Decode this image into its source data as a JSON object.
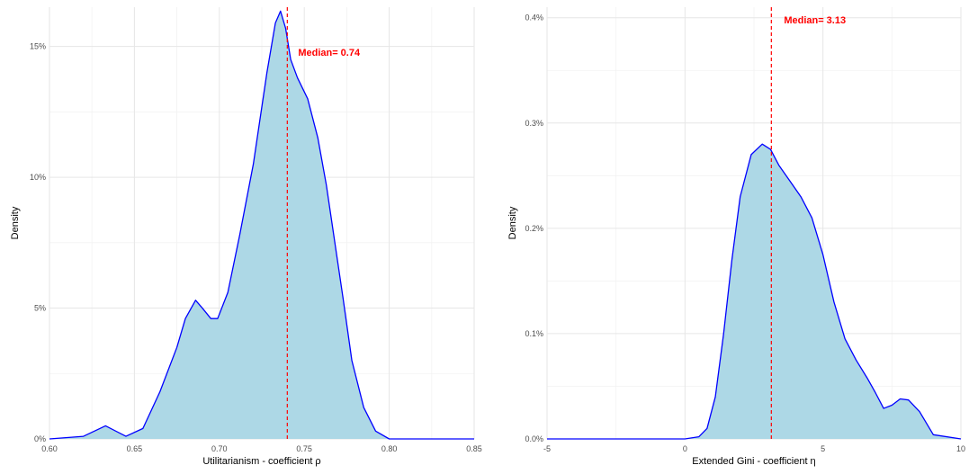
{
  "colors": {
    "fill": "#add8e6",
    "line": "#0000ff",
    "median": "#ff0000"
  },
  "chart_data": [
    {
      "type": "area",
      "title": "",
      "xlabel": "Utilitarianism - coefficient ρ",
      "ylabel": "Density",
      "xlim": [
        0.6,
        0.85
      ],
      "ylim": [
        0,
        0.165
      ],
      "x_ticks": [
        0.6,
        0.65,
        0.7,
        0.75,
        0.8,
        0.85
      ],
      "x_tick_labels": [
        "0.60",
        "0.65",
        "0.70",
        "0.75",
        "0.80",
        "0.85"
      ],
      "y_ticks": [
        0,
        0.05,
        0.1,
        0.15
      ],
      "y_tick_labels": [
        "0%",
        "5%",
        "10%",
        "15%"
      ],
      "grid": true,
      "median": {
        "x": 0.74,
        "label": "Median= 0.74"
      },
      "series": [
        {
          "x": [
            0.6,
            0.62,
            0.633,
            0.645,
            0.655,
            0.665,
            0.675,
            0.68,
            0.686,
            0.69,
            0.695,
            0.699,
            0.705,
            0.712,
            0.72,
            0.728,
            0.733,
            0.736,
            0.739,
            0.742,
            0.746,
            0.752,
            0.758,
            0.763,
            0.768,
            0.773,
            0.778,
            0.785,
            0.792,
            0.8,
            0.81,
            0.83,
            0.85
          ],
          "y": [
            0.0,
            0.001,
            0.005,
            0.001,
            0.004,
            0.018,
            0.035,
            0.046,
            0.053,
            0.05,
            0.046,
            0.046,
            0.056,
            0.078,
            0.105,
            0.14,
            0.159,
            0.1635,
            0.157,
            0.145,
            0.138,
            0.13,
            0.115,
            0.097,
            0.075,
            0.053,
            0.03,
            0.012,
            0.003,
            0.0,
            0.0,
            0.0,
            0.0
          ]
        }
      ]
    },
    {
      "type": "area",
      "title": "",
      "xlabel": "Extended Gini - coefficient η",
      "ylabel": "Density",
      "xlim": [
        -5,
        10
      ],
      "ylim": [
        0,
        0.0041
      ],
      "x_ticks": [
        -5,
        0,
        5,
        10
      ],
      "x_tick_labels": [
        "-5",
        "0",
        "5",
        "10"
      ],
      "y_ticks": [
        0,
        0.001,
        0.002,
        0.003,
        0.004
      ],
      "y_tick_labels": [
        "0.0%",
        "0.1%",
        "0.2%",
        "0.3%",
        "0.4%"
      ],
      "grid": true,
      "median": {
        "x": 3.13,
        "label": "Median= 3.13"
      },
      "series": [
        {
          "x": [
            -5,
            0,
            0.5,
            0.8,
            1.1,
            1.4,
            1.7,
            2.0,
            2.4,
            2.8,
            3.1,
            3.4,
            3.8,
            4.2,
            4.6,
            5.0,
            5.4,
            5.8,
            6.2,
            6.6,
            6.9,
            7.2,
            7.5,
            7.8,
            8.1,
            8.5,
            9.0,
            10.0
          ],
          "y": [
            0.0,
            0.0,
            2e-05,
            0.0001,
            0.0004,
            0.001,
            0.0017,
            0.0023,
            0.0027,
            0.0028,
            0.00275,
            0.0026,
            0.00245,
            0.0023,
            0.0021,
            0.00175,
            0.0013,
            0.00095,
            0.00075,
            0.00058,
            0.00044,
            0.00029,
            0.00032,
            0.00038,
            0.00037,
            0.00026,
            4e-05,
            0.0
          ]
        }
      ]
    }
  ]
}
